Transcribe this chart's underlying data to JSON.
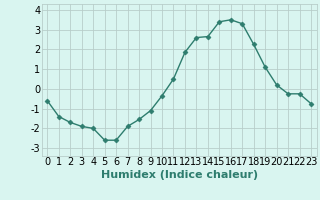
{
  "x": [
    0,
    1,
    2,
    3,
    4,
    5,
    6,
    7,
    8,
    9,
    10,
    11,
    12,
    13,
    14,
    15,
    16,
    17,
    18,
    19,
    20,
    21,
    22,
    23
  ],
  "y": [
    -0.6,
    -1.4,
    -1.7,
    -1.9,
    -2.0,
    -2.6,
    -2.6,
    -1.9,
    -1.55,
    -1.1,
    -0.35,
    0.5,
    1.85,
    2.6,
    2.65,
    3.4,
    3.5,
    3.3,
    2.25,
    1.1,
    0.2,
    -0.25,
    -0.25,
    -0.75
  ],
  "line_color": "#2e7d6e",
  "marker": "D",
  "marker_size": 2.5,
  "bg_color": "#d9f5f0",
  "grid_color": "#b8ceca",
  "xlabel": "Humidex (Indice chaleur)",
  "xlim": [
    -0.5,
    23.5
  ],
  "ylim": [
    -3.4,
    4.3
  ],
  "yticks": [
    -3,
    -2,
    -1,
    0,
    1,
    2,
    3,
    4
  ],
  "xticks": [
    0,
    1,
    2,
    3,
    4,
    5,
    6,
    7,
    8,
    9,
    10,
    11,
    12,
    13,
    14,
    15,
    16,
    17,
    18,
    19,
    20,
    21,
    22,
    23
  ],
  "xlabel_fontsize": 8,
  "tick_fontsize": 7
}
